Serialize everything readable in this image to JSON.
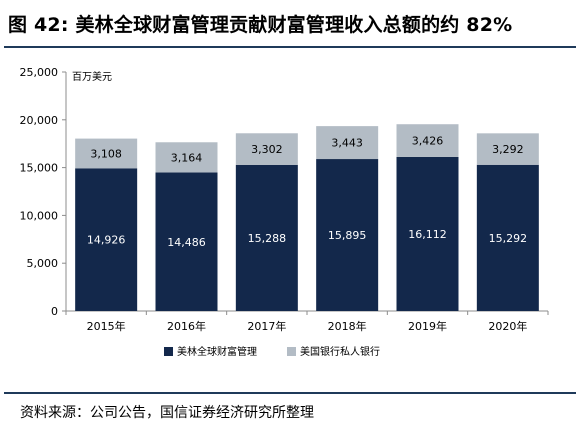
{
  "header": {
    "title": "图 42: 美林全球财富管理贡献财富管理收入总额的约 82%"
  },
  "footer": {
    "source": "资料来源：公司公告，国信证券经济研究所整理"
  },
  "colors": {
    "series1": "#13284b",
    "series2": "#b3bcc5",
    "rule": "#1f3a5a",
    "axis": "#8c8c8c"
  },
  "chart_data": {
    "type": "bar",
    "stacked": true,
    "unit_label": "百万美元",
    "categories": [
      "2015年",
      "2016年",
      "2017年",
      "2018年",
      "2019年",
      "2020年"
    ],
    "series": [
      {
        "name": "美林全球财富管理",
        "values": [
          14926,
          14486,
          15288,
          15895,
          16112,
          15292
        ],
        "labels": [
          "14,926",
          "14,486",
          "15,288",
          "15,895",
          "16,112",
          "15,292"
        ]
      },
      {
        "name": "美国银行私人银行",
        "values": [
          3108,
          3164,
          3302,
          3443,
          3426,
          3292
        ],
        "labels": [
          "3,108",
          "3,164",
          "3,302",
          "3,443",
          "3,426",
          "3,292"
        ]
      }
    ],
    "ylim": [
      0,
      25000
    ],
    "yticks": [
      0,
      5000,
      10000,
      15000,
      20000,
      25000
    ],
    "ytick_labels": [
      "0",
      "5,000",
      "10,000",
      "15,000",
      "20,000",
      "25,000"
    ],
    "legend_position": "bottom",
    "grid": false
  }
}
